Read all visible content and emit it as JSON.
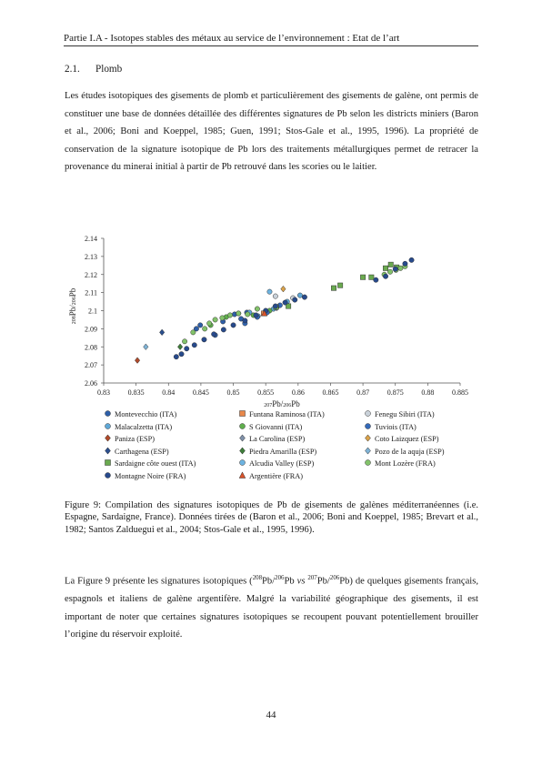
{
  "header": {
    "running_title": "Partie I.A - Isotopes stables des métaux au service de l’environnement : Etat de l’art"
  },
  "section": {
    "number": "2.1.",
    "title": "Plomb"
  },
  "paragraph_1": "Les études isotopiques des gisements de plomb et particulièrement des gisements de galène, ont permis de constituer une base de données détaillée des différentes signatures de Pb selon les districts miniers (Baron et al., 2006; Boni and Koeppel, 1985; Guen, 1991; Stos-Gale et al., 1995, 1996). La propriété de conservation de la signature isotopique de Pb lors des traitements métallurgiques permet de retracer la provenance du minerai initial à partir de Pb retrouvé dans les scories ou le laitier.",
  "caption": "Figure 9: Compilation des signatures isotopiques de Pb de gisements de galènes méditerranéennes (i.e. Espagne, Sardaigne, France). Données tirées de (Baron et al., 2006; Boni and Koeppel, 1985; Brevart et al., 1982; Santos Zalduegui et al., 2004; Stos-Gale et al., 1995, 1996).",
  "paragraph_2": {
    "part1": "La Figure 9 présente les signatures isotopiques (",
    "iso_a": "208",
    "el_a": "Pb/",
    "iso_b": "206",
    "el_b": "Pb ",
    "vs": "vs",
    "space": " ",
    "iso_c": "207",
    "el_c": "Pb/",
    "iso_d": "206",
    "el_d": "Pb",
    "part2": ") de quelques gisements français, espagnols et italiens de galène argentifère. Malgré la variabilité géographique des gisements, il est important de noter que certaines signatures isotopiques se recoupent pouvant potentiellement brouiller l’origine du réservoir exploité."
  },
  "page_number": "44",
  "chart_data": {
    "type": "scatter",
    "xlabel": {
      "sup1": "207",
      "t1": "Pb/",
      "sup2": "206",
      "t2": "Pb"
    },
    "ylabel": {
      "sup1": "208",
      "t1": "Pb/",
      "sup2": "206",
      "t2": "Pb"
    },
    "xlim": [
      0.83,
      0.885
    ],
    "ylim": [
      2.06,
      2.14
    ],
    "xticks": [
      "0.83",
      "0.835",
      "0.84",
      "0.845",
      "0.85",
      "0.855",
      "0.86",
      "0.865",
      "0.87",
      "0.875",
      "0.88",
      "0.885"
    ],
    "yticks": [
      "2.06",
      "2.07",
      "2.08",
      "2.09",
      "2.1",
      "2.11",
      "2.12",
      "2.13",
      "2.14"
    ],
    "grid": false,
    "legend_position": "bottom",
    "series": [
      {
        "name": "Montevecchio (ITA)",
        "marker": "circle",
        "color": "#2e5fa8",
        "x": [
          0.8443,
          0.8449,
          0.8472,
          0.8484,
          0.8502,
          0.8512,
          0.8521
        ],
        "y": [
          2.09,
          2.092,
          2.0865,
          2.094,
          2.098,
          2.0955,
          2.099
        ]
      },
      {
        "name": "Funtana Raminosa (ITA)",
        "marker": "square",
        "color": "#e8884a",
        "x": [
          0.8547
        ],
        "y": [
          2.0985
        ]
      },
      {
        "name": "Fenegu Sibiri (ITA)",
        "marker": "circle",
        "color": "#c9d1d9",
        "x": [
          0.8565,
          0.8592
        ],
        "y": [
          2.108,
          2.107
        ]
      },
      {
        "name": "Malacalzetta (ITA)",
        "marker": "circle",
        "color": "#5fa7d6",
        "x": [
          0.8525,
          0.8538,
          0.8562,
          0.8583,
          0.8603
        ],
        "y": [
          2.099,
          2.097,
          2.101,
          2.105,
          2.1085
        ]
      },
      {
        "name": "S Giovanni (ITA)",
        "marker": "circle",
        "color": "#5fae4c",
        "x": [
          0.8465,
          0.8489,
          0.8508,
          0.8531,
          0.8556
        ],
        "y": [
          2.092,
          2.0965,
          2.0985,
          2.0975,
          2.1
        ]
      },
      {
        "name": "Tuviois (ITA)",
        "marker": "circle",
        "color": "#3469b8",
        "x": [
          0.8518,
          0.8537,
          0.8552,
          0.8572
        ],
        "y": [
          2.093,
          2.0965,
          2.099,
          2.103
        ]
      },
      {
        "name": "Paniza (ESP)",
        "marker": "diamond",
        "color": "#b04a2a",
        "x": [
          0.8352
        ],
        "y": [
          2.0725
        ]
      },
      {
        "name": "La Carolina (ESP)",
        "marker": "diamond",
        "color": "#7f90a8",
        "x": [
          0.8567
        ],
        "y": [
          2.1015
        ]
      },
      {
        "name": "Coto Laizquez (ESP)",
        "marker": "diamond",
        "color": "#d9a24a",
        "x": [
          0.8577
        ],
        "y": [
          2.112
        ]
      },
      {
        "name": "Carthagena (ESP)",
        "marker": "diamond",
        "color": "#2b4f8e",
        "x": [
          0.839
        ],
        "y": [
          2.088
        ]
      },
      {
        "name": "Piedra Amarilla (ESP)",
        "marker": "diamond",
        "color": "#3f7d3a",
        "x": [
          0.8418
        ],
        "y": [
          2.08
        ]
      },
      {
        "name": "Pozo de la aquja (ESP)",
        "marker": "diamond",
        "color": "#7fb3d6",
        "x": [
          0.8365
        ],
        "y": [
          2.08
        ]
      },
      {
        "name": "Sardaigne côte ouest (ITA)",
        "marker": "square",
        "color": "#6aaa4f",
        "x": [
          0.8566,
          0.8585,
          0.8655,
          0.8665,
          0.87,
          0.8713,
          0.8735,
          0.8743,
          0.8752
        ],
        "y": [
          2.102,
          2.1025,
          2.1125,
          2.114,
          2.1185,
          2.1185,
          2.1235,
          2.1255,
          2.124
        ]
      },
      {
        "name": "Alcudia Valley (ESP)",
        "marker": "circle",
        "color": "#6db3e0",
        "x": [
          0.8556
        ],
        "y": [
          2.1105
        ]
      },
      {
        "name": "Mont Lozère (FRA)",
        "marker": "circle",
        "color": "#82c26a",
        "x": [
          0.8425,
          0.8438,
          0.8456,
          0.8463,
          0.8472,
          0.8483,
          0.8495,
          0.8508,
          0.8522,
          0.8537,
          0.8733,
          0.8742,
          0.8751,
          0.8758,
          0.8765
        ],
        "y": [
          2.083,
          2.088,
          2.09,
          2.093,
          2.095,
          2.096,
          2.0975,
          2.0985,
          2.098,
          2.101,
          2.12,
          2.1215,
          2.1225,
          2.1235,
          2.1245
        ]
      },
      {
        "name": "Montagne Noire (FRA)",
        "marker": "circle",
        "color": "#274a8c",
        "x": [
          0.8412,
          0.842,
          0.8428,
          0.844,
          0.8455,
          0.847,
          0.8485,
          0.85,
          0.8518,
          0.8535,
          0.855,
          0.8565,
          0.858,
          0.8595,
          0.861,
          0.872,
          0.8735,
          0.875,
          0.8765,
          0.8775
        ],
        "y": [
          2.0745,
          2.076,
          2.079,
          2.081,
          2.084,
          2.087,
          2.0895,
          2.092,
          2.0945,
          2.0975,
          2.1,
          2.1025,
          2.1045,
          2.106,
          2.1075,
          2.117,
          2.119,
          2.123,
          2.126,
          2.128
        ]
      },
      {
        "name": "Argentière (FRA)",
        "marker": "triangle",
        "color": "#d9532a",
        "x": [
          0.8548
        ],
        "y": [
          2.0985
        ]
      }
    ]
  }
}
